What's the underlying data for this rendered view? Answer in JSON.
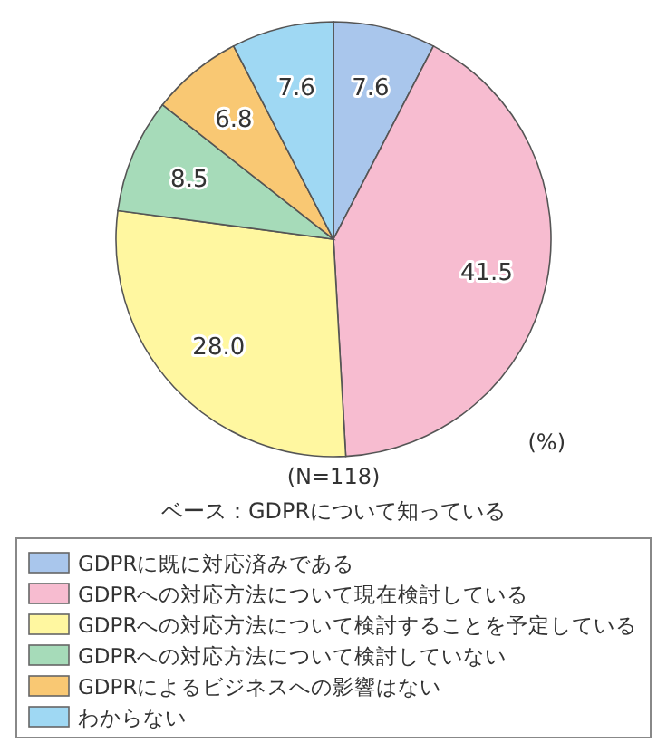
{
  "chart_data": {
    "type": "pie",
    "categories": [
      "GDPRに既に対応済みである",
      "GDPRへの対応方法について現在検討している",
      "GDPRへの対応方法について検討することを予定している",
      "GDPRへの対応方法について検討していない",
      "GDPRによるビジネスへの影響はない",
      "わからない"
    ],
    "values": [
      7.6,
      41.5,
      28.0,
      8.5,
      6.8,
      7.6
    ],
    "value_labels": [
      "7.6",
      "41.5",
      "28.0",
      "8.5",
      "6.8",
      "7.6"
    ],
    "colors": [
      "#a9c6ec",
      "#f7bcd0",
      "#fff7a0",
      "#a6dbb9",
      "#f9c873",
      "#9fd8f3"
    ],
    "legend": "bottom",
    "annotations": [
      "(%)",
      "(N=118)",
      "ベース：GDPRについて知っている"
    ]
  }
}
